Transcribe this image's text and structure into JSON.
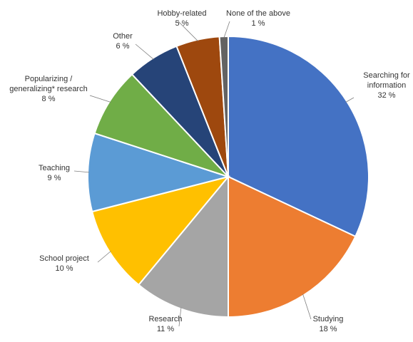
{
  "chart_data": {
    "type": "pie",
    "title": "",
    "start_angle_deg": 0,
    "direction": "clockwise",
    "slices": [
      {
        "label": "Searching for information",
        "value": 32,
        "value_label": "32 %",
        "color": "#4472C4",
        "label_lines": [
          "Searching for",
          "information"
        ]
      },
      {
        "label": "Studying",
        "value": 18,
        "value_label": "18 %",
        "color": "#ED7D31",
        "label_lines": [
          "Studying"
        ]
      },
      {
        "label": "Research",
        "value": 11,
        "value_label": "11 %",
        "color": "#A5A5A5",
        "label_lines": [
          "Research"
        ]
      },
      {
        "label": "School project",
        "value": 10,
        "value_label": "10 %",
        "color": "#FFC000",
        "label_lines": [
          "School project"
        ]
      },
      {
        "label": "Teaching",
        "value": 9,
        "value_label": "9 %",
        "color": "#5B9BD5",
        "label_lines": [
          "Teaching"
        ]
      },
      {
        "label": "Popularizing / generalizing* research",
        "value": 8,
        "value_label": "8 %",
        "color": "#70AD47",
        "label_lines": [
          "Popularizing /",
          "generalizing* research"
        ]
      },
      {
        "label": "Other",
        "value": 6,
        "value_label": "6 %",
        "color": "#264478",
        "label_lines": [
          "Other"
        ]
      },
      {
        "label": "Hobby-related",
        "value": 5,
        "value_label": "5 %",
        "color": "#9E480E",
        "label_lines": [
          "Hobby-related"
        ]
      },
      {
        "label": "None of the above",
        "value": 1,
        "value_label": "1 %",
        "color": "#636363",
        "label_lines": [
          "None of the above"
        ]
      }
    ]
  }
}
